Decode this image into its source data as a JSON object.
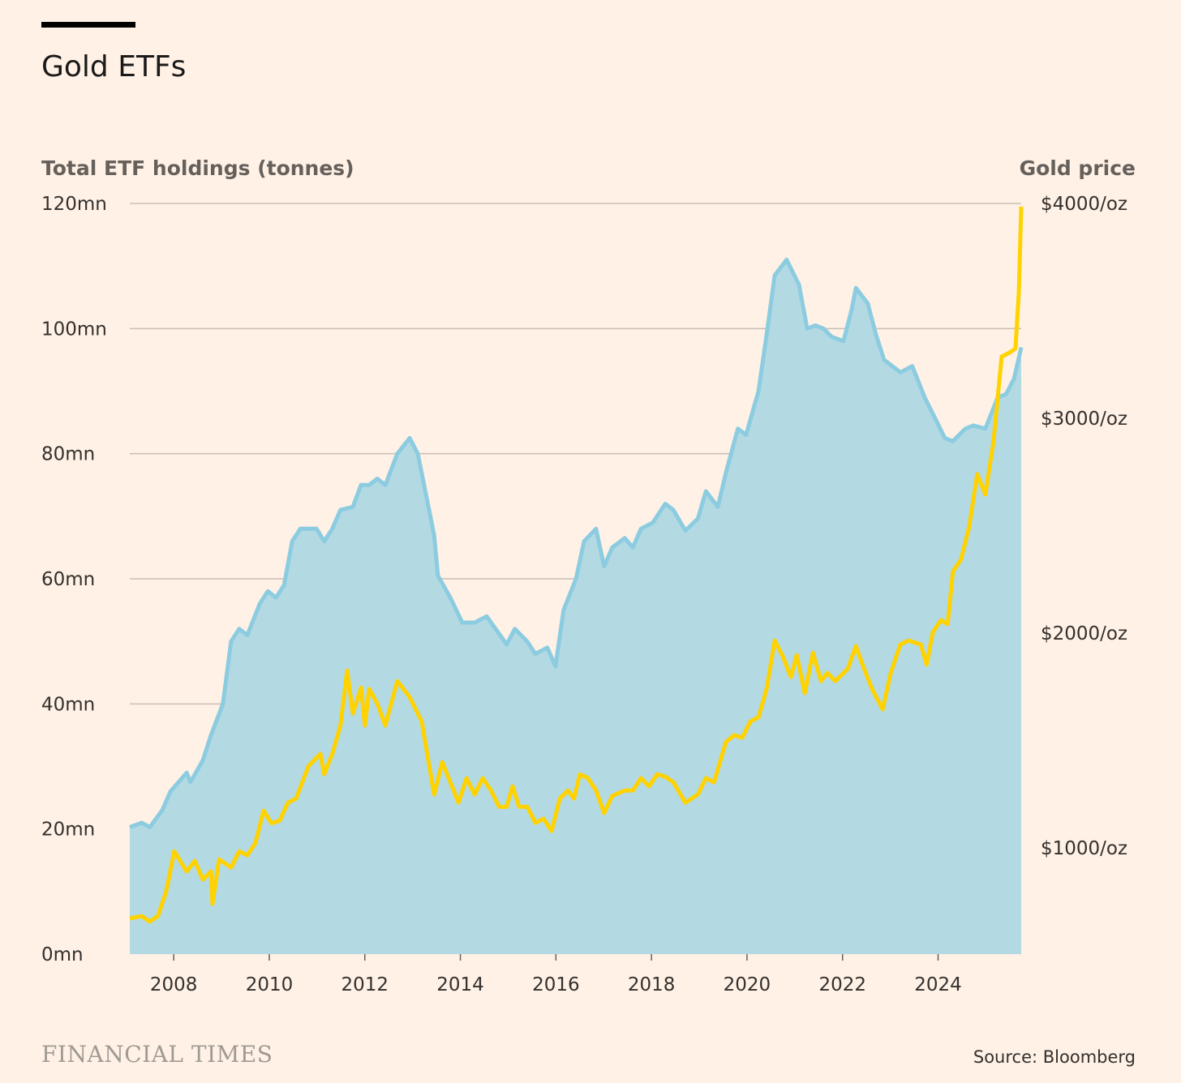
{
  "header": {
    "title": "Gold ETFs"
  },
  "footer": {
    "logo_text": "FINANCIAL TIMES",
    "source": "Source: Bloomberg"
  },
  "colors": {
    "background": "#fff1e5",
    "etf_fill": "#b3d9e3",
    "etf_line": "#8ccce0",
    "gold_line": "#ffd200",
    "grid": "#c9bfb6"
  },
  "chart_data": {
    "type": "area+line",
    "title": "Gold ETFs",
    "xlabel": "",
    "ylabel_left": "Total ETF holdings (tonnes)",
    "ylabel_right": "Gold price",
    "xlim": [
      2007.08,
      2025.74
    ],
    "ylim_left": [
      0,
      120
    ],
    "ylim_right": [
      506,
      4000
    ],
    "grid": true,
    "x_ticks": [
      "2008",
      "2010",
      "2012",
      "2014",
      "2016",
      "2018",
      "2020",
      "2022",
      "2024"
    ],
    "y_ticks_left": [
      "0mn",
      "20mn",
      "40mn",
      "60mn",
      "80mn",
      "100mn",
      "120mn"
    ],
    "y_ticks_right": [
      "$1000/oz",
      "$2000/oz",
      "$3000/oz",
      "$4000/oz"
    ],
    "series": [
      {
        "name": "Total ETF holdings",
        "type": "area",
        "unit": "mn",
        "points": [
          [
            2007.08,
            20.3
          ],
          [
            2007.33,
            21
          ],
          [
            2007.5,
            20.3
          ],
          [
            2007.76,
            23
          ],
          [
            2007.93,
            26
          ],
          [
            2008.27,
            29
          ],
          [
            2008.35,
            27.5
          ],
          [
            2008.61,
            31
          ],
          [
            2008.78,
            35
          ],
          [
            2009.03,
            40
          ],
          [
            2009.2,
            50
          ],
          [
            2009.37,
            52
          ],
          [
            2009.54,
            51
          ],
          [
            2009.8,
            56
          ],
          [
            2009.97,
            58
          ],
          [
            2010.14,
            57
          ],
          [
            2010.31,
            59
          ],
          [
            2010.48,
            66
          ],
          [
            2010.65,
            68
          ],
          [
            2010.99,
            68
          ],
          [
            2011.15,
            66
          ],
          [
            2011.32,
            68
          ],
          [
            2011.49,
            71
          ],
          [
            2011.75,
            71.5
          ],
          [
            2011.92,
            75
          ],
          [
            2012.09,
            75
          ],
          [
            2012.26,
            76
          ],
          [
            2012.43,
            75
          ],
          [
            2012.68,
            80
          ],
          [
            2012.94,
            82.5
          ],
          [
            2013.11,
            80
          ],
          [
            2013.45,
            67
          ],
          [
            2013.53,
            60.5
          ],
          [
            2013.79,
            57
          ],
          [
            2014.04,
            53
          ],
          [
            2014.3,
            53
          ],
          [
            2014.55,
            54
          ],
          [
            2014.97,
            49.5
          ],
          [
            2015.14,
            52
          ],
          [
            2015.4,
            50
          ],
          [
            2015.57,
            48
          ],
          [
            2015.82,
            49
          ],
          [
            2015.99,
            46
          ],
          [
            2016.16,
            55
          ],
          [
            2016.42,
            60
          ],
          [
            2016.59,
            66
          ],
          [
            2016.84,
            68
          ],
          [
            2017.01,
            62
          ],
          [
            2017.18,
            65
          ],
          [
            2017.44,
            66.5
          ],
          [
            2017.61,
            65
          ],
          [
            2017.78,
            68
          ],
          [
            2018.03,
            69
          ],
          [
            2018.29,
            72
          ],
          [
            2018.46,
            71
          ],
          [
            2018.71,
            67.7
          ],
          [
            2018.97,
            69.6
          ],
          [
            2019.14,
            74
          ],
          [
            2019.39,
            71.5
          ],
          [
            2019.56,
            77
          ],
          [
            2019.81,
            84
          ],
          [
            2019.98,
            83
          ],
          [
            2020.24,
            90
          ],
          [
            2020.41,
            99
          ],
          [
            2020.58,
            108.5
          ],
          [
            2020.83,
            111
          ],
          [
            2021.09,
            107
          ],
          [
            2021.26,
            100
          ],
          [
            2021.43,
            100.5
          ],
          [
            2021.6,
            100
          ],
          [
            2021.77,
            98.7
          ],
          [
            2022.02,
            98
          ],
          [
            2022.19,
            103
          ],
          [
            2022.28,
            106.5
          ],
          [
            2022.53,
            104
          ],
          [
            2022.7,
            99
          ],
          [
            2022.87,
            95
          ],
          [
            2023.21,
            93
          ],
          [
            2023.46,
            94
          ],
          [
            2023.72,
            89
          ],
          [
            2023.89,
            86.4
          ],
          [
            2024.14,
            82.5
          ],
          [
            2024.31,
            82
          ],
          [
            2024.57,
            84
          ],
          [
            2024.74,
            84.5
          ],
          [
            2024.99,
            84
          ],
          [
            2025.25,
            89
          ],
          [
            2025.42,
            89.5
          ],
          [
            2025.59,
            92
          ],
          [
            2025.74,
            97
          ]
        ]
      },
      {
        "name": "Gold price",
        "type": "line",
        "unit": "$/oz",
        "axis": "right",
        "points": [
          [
            2007.08,
            672
          ],
          [
            2007.33,
            683
          ],
          [
            2007.5,
            657
          ],
          [
            2007.67,
            683
          ],
          [
            2007.84,
            796
          ],
          [
            2008.01,
            985
          ],
          [
            2008.27,
            891
          ],
          [
            2008.44,
            940
          ],
          [
            2008.61,
            853
          ],
          [
            2008.78,
            891
          ],
          [
            2008.81,
            740
          ],
          [
            2008.95,
            947
          ],
          [
            2009.2,
            909
          ],
          [
            2009.37,
            985
          ],
          [
            2009.54,
            966
          ],
          [
            2009.71,
            1023
          ],
          [
            2009.88,
            1174
          ],
          [
            2010.05,
            1115
          ],
          [
            2010.22,
            1128
          ],
          [
            2010.39,
            1211
          ],
          [
            2010.56,
            1230
          ],
          [
            2010.82,
            1381
          ],
          [
            2011.07,
            1438
          ],
          [
            2011.15,
            1343
          ],
          [
            2011.32,
            1438
          ],
          [
            2011.49,
            1570
          ],
          [
            2011.63,
            1826
          ],
          [
            2011.75,
            1626
          ],
          [
            2011.92,
            1747
          ],
          [
            2012.0,
            1570
          ],
          [
            2012.09,
            1740
          ],
          [
            2012.26,
            1672
          ],
          [
            2012.43,
            1570
          ],
          [
            2012.68,
            1777
          ],
          [
            2012.94,
            1702
          ],
          [
            2013.19,
            1589
          ],
          [
            2013.45,
            1249
          ],
          [
            2013.62,
            1400
          ],
          [
            2013.79,
            1306
          ],
          [
            2013.96,
            1211
          ],
          [
            2014.13,
            1325
          ],
          [
            2014.3,
            1249
          ],
          [
            2014.47,
            1325
          ],
          [
            2014.64,
            1268
          ],
          [
            2014.81,
            1192
          ],
          [
            2014.97,
            1192
          ],
          [
            2015.09,
            1287
          ],
          [
            2015.23,
            1192
          ],
          [
            2015.4,
            1192
          ],
          [
            2015.57,
            1117
          ],
          [
            2015.74,
            1136
          ],
          [
            2015.91,
            1079
          ],
          [
            2016.08,
            1230
          ],
          [
            2016.25,
            1268
          ],
          [
            2016.38,
            1230
          ],
          [
            2016.5,
            1343
          ],
          [
            2016.67,
            1325
          ],
          [
            2016.84,
            1268
          ],
          [
            2017.01,
            1162
          ],
          [
            2017.18,
            1242
          ],
          [
            2017.44,
            1268
          ],
          [
            2017.61,
            1268
          ],
          [
            2017.78,
            1325
          ],
          [
            2017.95,
            1287
          ],
          [
            2018.12,
            1343
          ],
          [
            2018.29,
            1332
          ],
          [
            2018.46,
            1306
          ],
          [
            2018.71,
            1211
          ],
          [
            2018.97,
            1249
          ],
          [
            2019.14,
            1325
          ],
          [
            2019.31,
            1306
          ],
          [
            2019.56,
            1494
          ],
          [
            2019.73,
            1525
          ],
          [
            2019.9,
            1513
          ],
          [
            2020.07,
            1589
          ],
          [
            2020.24,
            1608
          ],
          [
            2020.41,
            1740
          ],
          [
            2020.58,
            1966
          ],
          [
            2020.75,
            1891
          ],
          [
            2020.92,
            1796
          ],
          [
            2021.04,
            1898
          ],
          [
            2021.21,
            1721
          ],
          [
            2021.38,
            1909
          ],
          [
            2021.55,
            1777
          ],
          [
            2021.68,
            1815
          ],
          [
            2021.85,
            1777
          ],
          [
            2022.11,
            1834
          ],
          [
            2022.28,
            1940
          ],
          [
            2022.45,
            1834
          ],
          [
            2022.62,
            1740
          ],
          [
            2022.84,
            1645
          ],
          [
            2023.01,
            1815
          ],
          [
            2023.21,
            1947
          ],
          [
            2023.38,
            1966
          ],
          [
            2023.64,
            1947
          ],
          [
            2023.76,
            1853
          ],
          [
            2023.89,
            2004
          ],
          [
            2024.06,
            2060
          ],
          [
            2024.2,
            2042
          ],
          [
            2024.31,
            2287
          ],
          [
            2024.48,
            2343
          ],
          [
            2024.65,
            2494
          ],
          [
            2024.82,
            2740
          ],
          [
            2024.99,
            2645
          ],
          [
            2025.16,
            2891
          ],
          [
            2025.33,
            3287
          ],
          [
            2025.5,
            3306
          ],
          [
            2025.62,
            3325
          ],
          [
            2025.69,
            3589
          ],
          [
            2025.74,
            3985
          ]
        ]
      }
    ]
  }
}
